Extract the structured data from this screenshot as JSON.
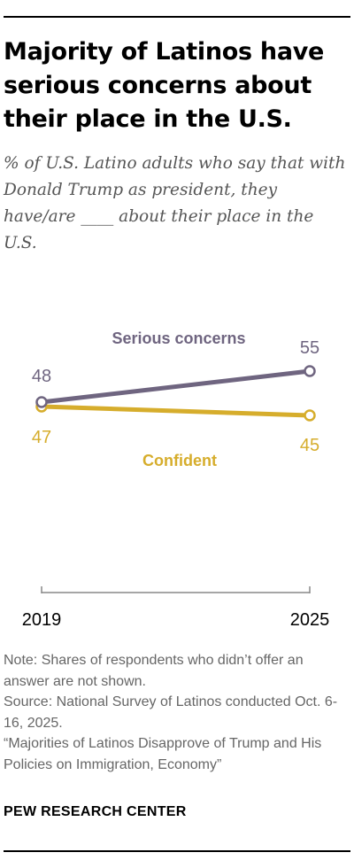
{
  "header": {
    "title": "Majority of Latinos have serious concerns about their place in the U.S.",
    "subtitle": "% of U.S. Latino adults who say that with Donald Trump as president, they have/are ____ about their place in the U.S."
  },
  "chart_data": {
    "type": "line",
    "x": [
      "2019",
      "2025"
    ],
    "series": [
      {
        "name": "Serious concerns",
        "values": [
          48,
          55
        ],
        "color": "#6f6580"
      },
      {
        "name": "Confident",
        "values": [
          47,
          45
        ],
        "color": "#d6ad2c"
      }
    ],
    "title": "Majority of Latinos have serious concerns about their place in the U.S.",
    "xlabel": "",
    "ylabel": "",
    "grid": false,
    "legend": "inline labels"
  },
  "footer": {
    "note": "Note: Shares of respondents who didn’t offer an answer are not shown.",
    "source": "Source: National Survey of Latinos conducted Oct. 6-16, 2025.",
    "report": "“Majorities of Latinos Disapprove of Trump and His Policies on Immigration, Economy”",
    "brand": "PEW RESEARCH CENTER"
  }
}
